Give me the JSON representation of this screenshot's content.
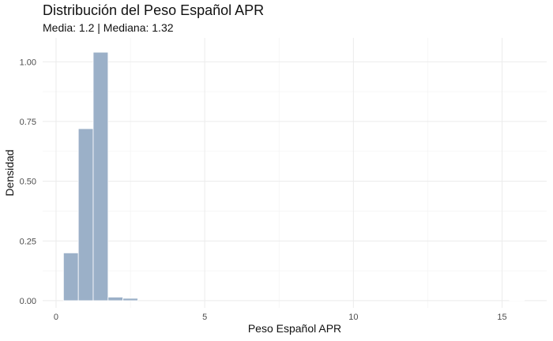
{
  "chart_data": {
    "type": "histogram",
    "title": "Distribución del Peso Español APR",
    "subtitle": "Media: 1.2 | Mediana: 1.32",
    "xlabel": "Peso Español APR",
    "ylabel": "Densidad",
    "xlim": [
      -0.45,
      16.5
    ],
    "ylim": [
      -0.03,
      1.1
    ],
    "x_ticks": [
      0,
      5,
      10,
      15
    ],
    "x_tick_labels": [
      "0",
      "5",
      "10",
      "15"
    ],
    "y_ticks": [
      0,
      0.25,
      0.5,
      0.75,
      1.0
    ],
    "y_tick_labels": [
      "0.00",
      "0.25",
      "0.50",
      "0.75",
      "1.00"
    ],
    "grid": true,
    "bar_color": "#9bb0c8",
    "bins": [
      {
        "x0": 0.25,
        "x1": 0.75,
        "density": 0.2
      },
      {
        "x0": 0.75,
        "x1": 1.25,
        "density": 0.72
      },
      {
        "x0": 1.25,
        "x1": 1.75,
        "density": 1.04
      },
      {
        "x0": 1.75,
        "x1": 2.25,
        "density": 0.015
      },
      {
        "x0": 2.25,
        "x1": 2.75,
        "density": 0.01
      },
      {
        "x0": 15.25,
        "x1": 15.75,
        "density": 0.002
      }
    ]
  }
}
